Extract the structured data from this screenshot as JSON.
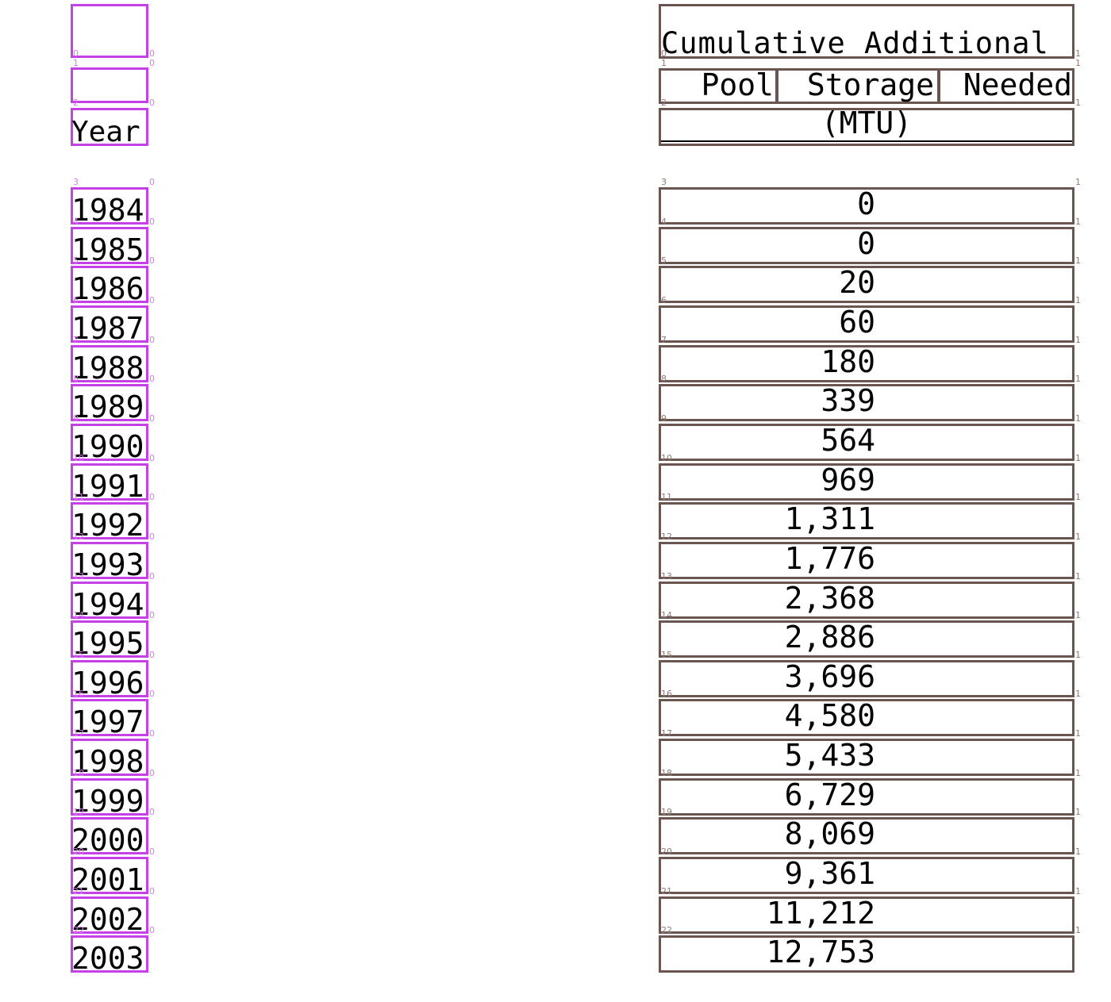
{
  "header": {
    "year_label": "Year",
    "title_line1": "Cumulative Additional",
    "title_line2_parts": [
      "Pool",
      "Storage",
      "Needed"
    ],
    "title_line3": "(MTU)"
  },
  "rows": [
    {
      "year": "1984",
      "value": "0"
    },
    {
      "year": "1985",
      "value": "0"
    },
    {
      "year": "1986",
      "value": "20"
    },
    {
      "year": "1987",
      "value": "60"
    },
    {
      "year": "1988",
      "value": "180"
    },
    {
      "year": "1989",
      "value": "339"
    },
    {
      "year": "1990",
      "value": "564"
    },
    {
      "year": "1991",
      "value": "969"
    },
    {
      "year": "1992",
      "value": "1,311"
    },
    {
      "year": "1993",
      "value": "1,776"
    },
    {
      "year": "1994",
      "value": "2,368"
    },
    {
      "year": "1995",
      "value": "2,886"
    },
    {
      "year": "1996",
      "value": "3,696"
    },
    {
      "year": "1997",
      "value": "4,580"
    },
    {
      "year": "1998",
      "value": "5,433"
    },
    {
      "year": "1999",
      "value": "6,729"
    },
    {
      "year": "2000",
      "value": "8,069"
    },
    {
      "year": "2001",
      "value": "9,361"
    },
    {
      "year": "2002",
      "value": "11,212"
    },
    {
      "year": "2003",
      "value": "12,753"
    }
  ],
  "annotation_tags": {
    "row_indices": [
      "0",
      "1",
      "2",
      "3",
      "4",
      "5",
      "6",
      "7",
      "8",
      "9",
      "10",
      "11",
      "12",
      "13",
      "14",
      "15",
      "16",
      "17",
      "18",
      "19",
      "20",
      "21",
      "22"
    ],
    "year_col": "0",
    "value_col": "1"
  },
  "colors": {
    "year_box": "#c640e8",
    "value_box": "#6b5551",
    "text": "#000000"
  }
}
